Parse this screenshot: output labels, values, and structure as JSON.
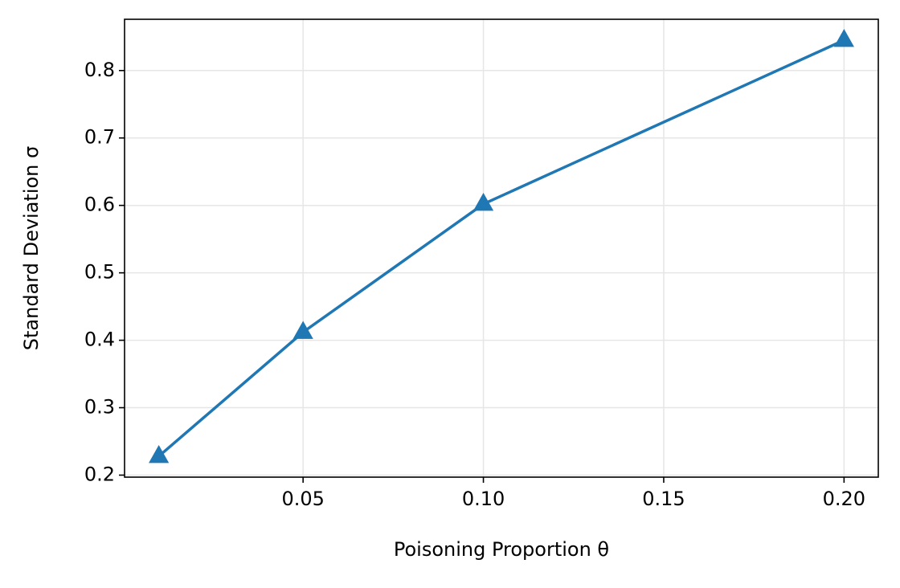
{
  "chart_data": {
    "type": "line",
    "x_label": "Poisoning Proportion θ",
    "y_label": "Standard Deviation σ",
    "x": [
      0.01,
      0.05,
      0.1,
      0.2
    ],
    "series": [
      {
        "color": "#1f77b4",
        "marker": "triangle",
        "values": [
          0.228,
          0.412,
          0.602,
          0.845
        ]
      }
    ],
    "xlim": [
      0.0005,
      0.2095
    ],
    "ylim": [
      0.197,
      0.876
    ],
    "xticks": [
      0.05,
      {
        "value": 0.1,
        "label": "0.10"
      },
      0.15,
      {
        "value": 0.2,
        "label": "0.20"
      }
    ],
    "yticks": [
      0.2,
      0.3,
      0.4,
      0.5,
      0.6,
      0.7,
      0.8
    ],
    "grid": true
  }
}
